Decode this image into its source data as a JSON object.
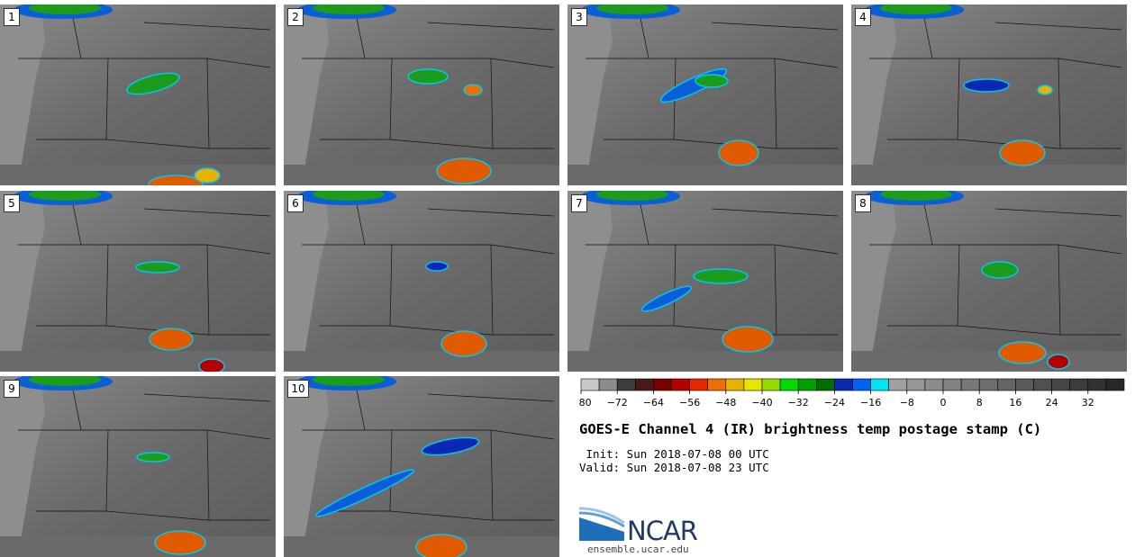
{
  "panels": [
    {
      "label": "1"
    },
    {
      "label": "2"
    },
    {
      "label": "3"
    },
    {
      "label": "4"
    },
    {
      "label": "5"
    },
    {
      "label": "6"
    },
    {
      "label": "7"
    },
    {
      "label": "8"
    },
    {
      "label": "9"
    },
    {
      "label": "10"
    }
  ],
  "colorbar": {
    "ticks": [
      "−80",
      "−72",
      "−64",
      "−56",
      "−48",
      "−40",
      "−32",
      "−24",
      "−16",
      "−8",
      "0",
      "8",
      "16",
      "24",
      "32"
    ],
    "colors": [
      "#c8c8c8",
      "#8c8c8c",
      "#3c3c3c",
      "#4a1a1a",
      "#780000",
      "#b40000",
      "#e62800",
      "#f06e00",
      "#e6b400",
      "#e6e600",
      "#96dc00",
      "#00dc00",
      "#00a000",
      "#006e00",
      "#0a28b4",
      "#0064f0",
      "#00e6f0",
      "#a0a0a0",
      "#969696",
      "#8c8c8c",
      "#828282",
      "#787878",
      "#6e6e6e",
      "#646464",
      "#5a5a5a",
      "#505050",
      "#464646",
      "#3c3c3c",
      "#323232",
      "#282828"
    ]
  },
  "title": "GOES-E Channel 4 (IR) brightness temp postage stamp (C)",
  "init_line": " Init: Sun 2018-07-08 00 UTC",
  "valid_line": "Valid: Sun 2018-07-08 23 UTC",
  "logo": {
    "name": "NCAR",
    "url": "ensemble.ucar.edu"
  }
}
